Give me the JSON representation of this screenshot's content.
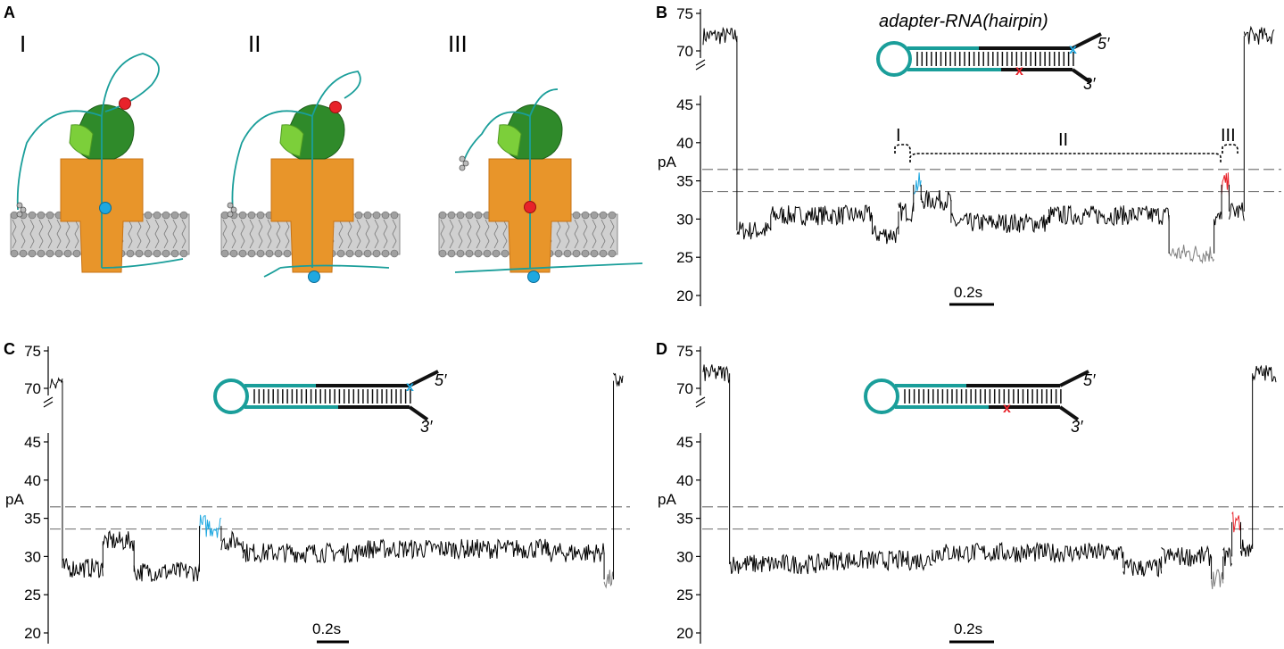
{
  "colors": {
    "trace": "#000000",
    "blue_marker": "#1fa8e0",
    "red_marker": "#e8222a",
    "gray_trace": "#808080",
    "teal_strand": "#1a9e9a",
    "pore_orange": "#e8952a",
    "helicase_green": "#3fa83a",
    "membrane_gray": "#9a9a9a",
    "dashed_line": "#7a7a7a"
  },
  "panels": {
    "A": {
      "letter": "A",
      "states": [
        {
          "label": "I",
          "red_marker_on_strand_top": true,
          "blue_marker_in_pore": true
        },
        {
          "label": "II",
          "red_marker_on_strand_top": true,
          "blue_marker_below_membrane": true
        },
        {
          "label": "III",
          "red_marker_in_pore": true,
          "blue_marker_below_membrane": true
        }
      ],
      "icons": [
        "nanopore-icon",
        "helicase-icon",
        "lipid-membrane-icon",
        "dna-strand-icon"
      ]
    },
    "B": {
      "letter": "B",
      "diagram_title": "adapter-RNA(hairpin)",
      "end_5": "5′",
      "end_3": "3′",
      "marks": [
        "blue-x",
        "red-x"
      ],
      "region_labels": [
        "I",
        "II",
        "III"
      ],
      "scale_bar": "0.2s"
    },
    "C": {
      "letter": "C",
      "end_5": "5′",
      "end_3": "3′",
      "marks": [
        "blue-x"
      ],
      "scale_bar": "0.2s"
    },
    "D": {
      "letter": "D",
      "end_5": "5′",
      "end_3": "3′",
      "marks": [
        "red-x"
      ],
      "scale_bar": "0.2s"
    }
  },
  "chart_data": [
    {
      "panel": "B",
      "type": "line",
      "ylabel": "pA",
      "yticks": [
        75,
        70,
        45,
        40,
        35,
        30,
        25,
        20
      ],
      "axis_break": "between 70 and 45",
      "dashed_reference_levels": [
        36.5,
        33.6
      ],
      "time_scale_bar_s": 0.2,
      "segments": [
        {
          "t": [
            0.0,
            0.09
          ],
          "level": 72,
          "color": "black"
        },
        {
          "t": [
            0.09,
            0.18
          ],
          "level": 28.5,
          "color": "black"
        },
        {
          "t": [
            0.18,
            0.45
          ],
          "level": 30.5,
          "color": "black"
        },
        {
          "t": [
            0.45,
            0.52
          ],
          "level": 28,
          "color": "black"
        },
        {
          "t": [
            0.52,
            0.56
          ],
          "level": 31,
          "color": "black"
        },
        {
          "t": [
            0.56,
            0.58
          ],
          "level": 34.5,
          "color": "blue"
        },
        {
          "t": [
            0.58,
            0.66
          ],
          "level": 32.5,
          "color": "black"
        },
        {
          "t": [
            0.66,
            0.92
          ],
          "level": 29.5,
          "color": "black"
        },
        {
          "t": [
            0.92,
            1.24
          ],
          "level": 30.5,
          "color": "black"
        },
        {
          "t": [
            1.24,
            1.36
          ],
          "level": 25.5,
          "color": "gray"
        },
        {
          "t": [
            1.36,
            1.38
          ],
          "level": 30,
          "color": "black"
        },
        {
          "t": [
            1.38,
            1.4
          ],
          "level": 34.5,
          "color": "red"
        },
        {
          "t": [
            1.4,
            1.44
          ],
          "level": 31,
          "color": "black"
        },
        {
          "t": [
            1.44,
            1.52
          ],
          "level": 72,
          "color": "black"
        }
      ]
    },
    {
      "panel": "C",
      "type": "line",
      "ylabel": "pA",
      "yticks": [
        75,
        70,
        45,
        40,
        35,
        30,
        25,
        20
      ],
      "axis_break": "between 70 and 45",
      "dashed_reference_levels": [
        36.5,
        33.6
      ],
      "time_scale_bar_s": 0.2,
      "segments": [
        {
          "t": [
            0.0,
            0.04
          ],
          "level": 71,
          "color": "black"
        },
        {
          "t": [
            0.04,
            0.17
          ],
          "level": 28.5,
          "color": "black"
        },
        {
          "t": [
            0.17,
            0.27
          ],
          "level": 32,
          "color": "black"
        },
        {
          "t": [
            0.27,
            0.48
          ],
          "level": 28,
          "color": "black"
        },
        {
          "t": [
            0.48,
            0.55
          ],
          "level": 34,
          "color": "blue"
        },
        {
          "t": [
            0.55,
            0.62
          ],
          "level": 32,
          "color": "black"
        },
        {
          "t": [
            0.62,
            1.0
          ],
          "level": 30.5,
          "color": "black"
        },
        {
          "t": [
            1.0,
            1.6
          ],
          "level": 31,
          "color": "black"
        },
        {
          "t": [
            1.6,
            1.78
          ],
          "level": 30.5,
          "color": "black"
        },
        {
          "t": [
            1.78,
            1.81
          ],
          "level": 27,
          "color": "gray"
        },
        {
          "t": [
            1.81,
            1.84
          ],
          "level": 71,
          "color": "black"
        }
      ]
    },
    {
      "panel": "D",
      "type": "line",
      "ylabel": "pA",
      "yticks": [
        75,
        70,
        45,
        40,
        35,
        30,
        25,
        20
      ],
      "axis_break": "between 70 and 45",
      "dashed_reference_levels": [
        36.5,
        33.6
      ],
      "time_scale_bar_s": 0.2,
      "segments": [
        {
          "t": [
            0.0,
            0.09
          ],
          "level": 72,
          "color": "black"
        },
        {
          "t": [
            0.09,
            0.42
          ],
          "level": 29,
          "color": "black"
        },
        {
          "t": [
            0.42,
            0.78
          ],
          "level": 29.5,
          "color": "black"
        },
        {
          "t": [
            0.78,
            1.43
          ],
          "level": 30.5,
          "color": "black"
        },
        {
          "t": [
            1.43,
            1.56
          ],
          "level": 28.5,
          "color": "black"
        },
        {
          "t": [
            1.56,
            1.73
          ],
          "level": 30,
          "color": "black"
        },
        {
          "t": [
            1.73,
            1.77
          ],
          "level": 27,
          "color": "gray"
        },
        {
          "t": [
            1.77,
            1.8
          ],
          "level": 30,
          "color": "black"
        },
        {
          "t": [
            1.8,
            1.83
          ],
          "level": 34.5,
          "color": "red"
        },
        {
          "t": [
            1.83,
            1.87
          ],
          "level": 31,
          "color": "black"
        },
        {
          "t": [
            1.87,
            1.95
          ],
          "level": 72,
          "color": "black"
        }
      ]
    }
  ]
}
